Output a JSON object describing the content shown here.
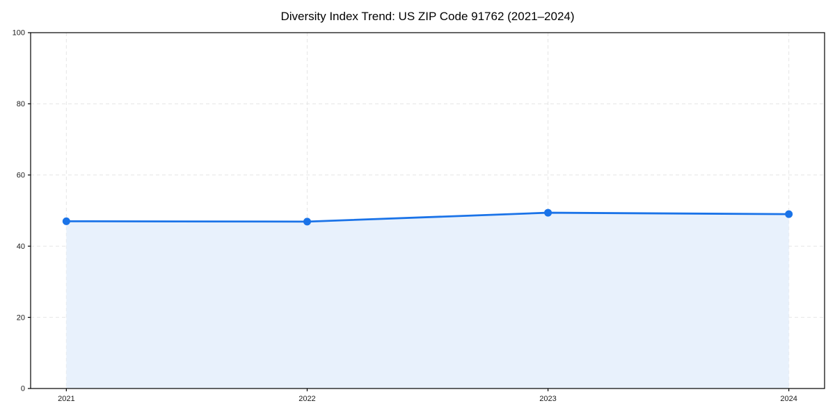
{
  "chart_data": {
    "type": "area",
    "title": "Diversity Index Trend: US ZIP Code 91762 (2021–2024)",
    "x": [
      2021,
      2022,
      2023,
      2024
    ],
    "categories": [
      "2021",
      "2022",
      "2023",
      "2024"
    ],
    "series": [
      {
        "name": "Diversity Index",
        "values": [
          47.0,
          46.9,
          49.4,
          49.0
        ]
      }
    ],
    "xlabel": "",
    "ylabel": "",
    "ylim": [
      0,
      100
    ],
    "yticks": [
      0,
      20,
      40,
      60,
      80,
      100
    ],
    "xticks": [
      "2021",
      "2022",
      "2023",
      "2024"
    ],
    "grid": true,
    "grid_style": "dashed",
    "legend_position": "none",
    "marker": "circle",
    "colors": {
      "line": "#1a73e8",
      "marker": "#1a73e8",
      "fill": "#e8f1fc",
      "grid": "#e5e5e5",
      "spine": "#000000",
      "tick_label": "#1a1a1a",
      "title": "#000000",
      "background": "#ffffff"
    }
  }
}
